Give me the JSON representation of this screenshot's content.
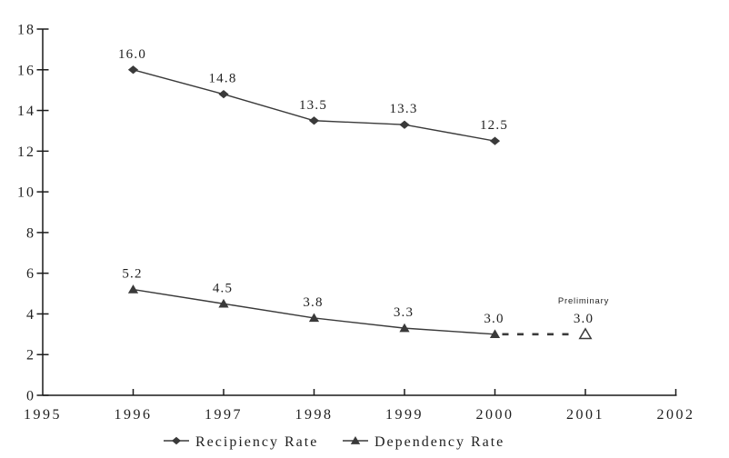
{
  "chart_data": {
    "type": "line",
    "title": "",
    "xlabel": "",
    "ylabel": "",
    "x": [
      1996,
      1997,
      1998,
      1999,
      2000
    ],
    "series": [
      {
        "name": "Recipiency Rate",
        "marker": "diamond",
        "values": [
          16.0,
          14.8,
          13.5,
          13.3,
          12.5
        ],
        "point_labels": [
          "16.0",
          "14.8",
          "13.5",
          "13.3",
          "12.5"
        ]
      },
      {
        "name": "Dependency Rate",
        "marker": "triangle",
        "values": [
          5.2,
          4.5,
          3.8,
          3.3,
          3.0
        ],
        "point_labels": [
          "5.2",
          "4.5",
          "3.8",
          "3.3",
          "3.0"
        ]
      }
    ],
    "preliminary": {
      "series": "Dependency Rate",
      "x": 2001,
      "value": 3.0,
      "point_label": "3.0",
      "annotation": "Preliminary",
      "marker": "open-triangle",
      "connector": "dashed"
    },
    "xlim": [
      1995,
      2002
    ],
    "ylim": [
      0,
      18
    ],
    "x_ticks": [
      "1995",
      "1996",
      "1997",
      "1998",
      "1999",
      "2000",
      "2001",
      "2002"
    ],
    "y_ticks": [
      "0",
      "2",
      "4",
      "6",
      "8",
      "10",
      "12",
      "14",
      "16",
      "18"
    ],
    "grid": false,
    "legend_position": "bottom-center",
    "legend": [
      {
        "label": "Recipiency Rate",
        "marker": "diamond"
      },
      {
        "label": "Dependency Rate",
        "marker": "triangle"
      }
    ],
    "colors": {
      "line": "#3a3a3a",
      "marker_fill": "#3a3a3a",
      "open_marker_fill": "#ffffff",
      "axis": "#1a1a1a",
      "text": "#1f1f1f",
      "background": "#ffffff"
    }
  }
}
